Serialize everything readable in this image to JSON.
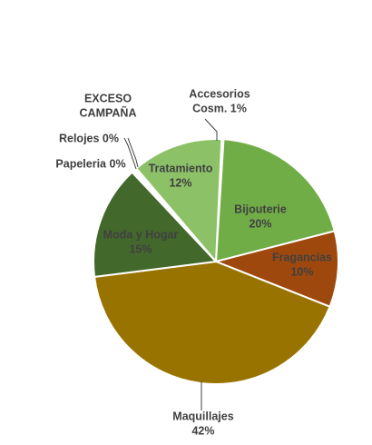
{
  "chart_data": {
    "type": "pie",
    "slices": [
      {
        "name": "Accesorios Cosm.",
        "value": 1,
        "label_lines": [
          "Accesorios",
          "Cosm. 1%"
        ],
        "color": "#f5b800"
      },
      {
        "name": "Bijouterie",
        "value": 20,
        "label_lines": [
          "Bijouterie",
          "20%"
        ],
        "color": "#70ad47"
      },
      {
        "name": "Fragancias",
        "value": 10,
        "label_lines": [
          "Fragancias",
          "10%"
        ],
        "color": "#9e480e"
      },
      {
        "name": "Maquillajes",
        "value": 42,
        "label_lines": [
          "Maquillajes",
          "42%"
        ],
        "color": "#997300"
      },
      {
        "name": "Moda y Hogar",
        "value": 15,
        "label_lines": [
          "Moda y Hogar",
          "15%"
        ],
        "color": "#43682b"
      },
      {
        "name": "Papeleria",
        "value": 0,
        "label_lines": [
          "Papeleria 0%"
        ],
        "color": "#a9d18e"
      },
      {
        "name": "Relojes",
        "value": 0,
        "label_lines": [
          "Relojes 0%"
        ],
        "color": "#c5e0b4"
      },
      {
        "name": "EXCESO CAMPAÑA",
        "value": 0,
        "label_lines": [
          "EXCESO",
          "CAMPAÑA"
        ],
        "color": "#548235"
      },
      {
        "name": "Tratamiento",
        "value": 12,
        "label_lines": [
          "Tratamiento",
          "12%"
        ],
        "color": "#8cc168"
      }
    ]
  }
}
